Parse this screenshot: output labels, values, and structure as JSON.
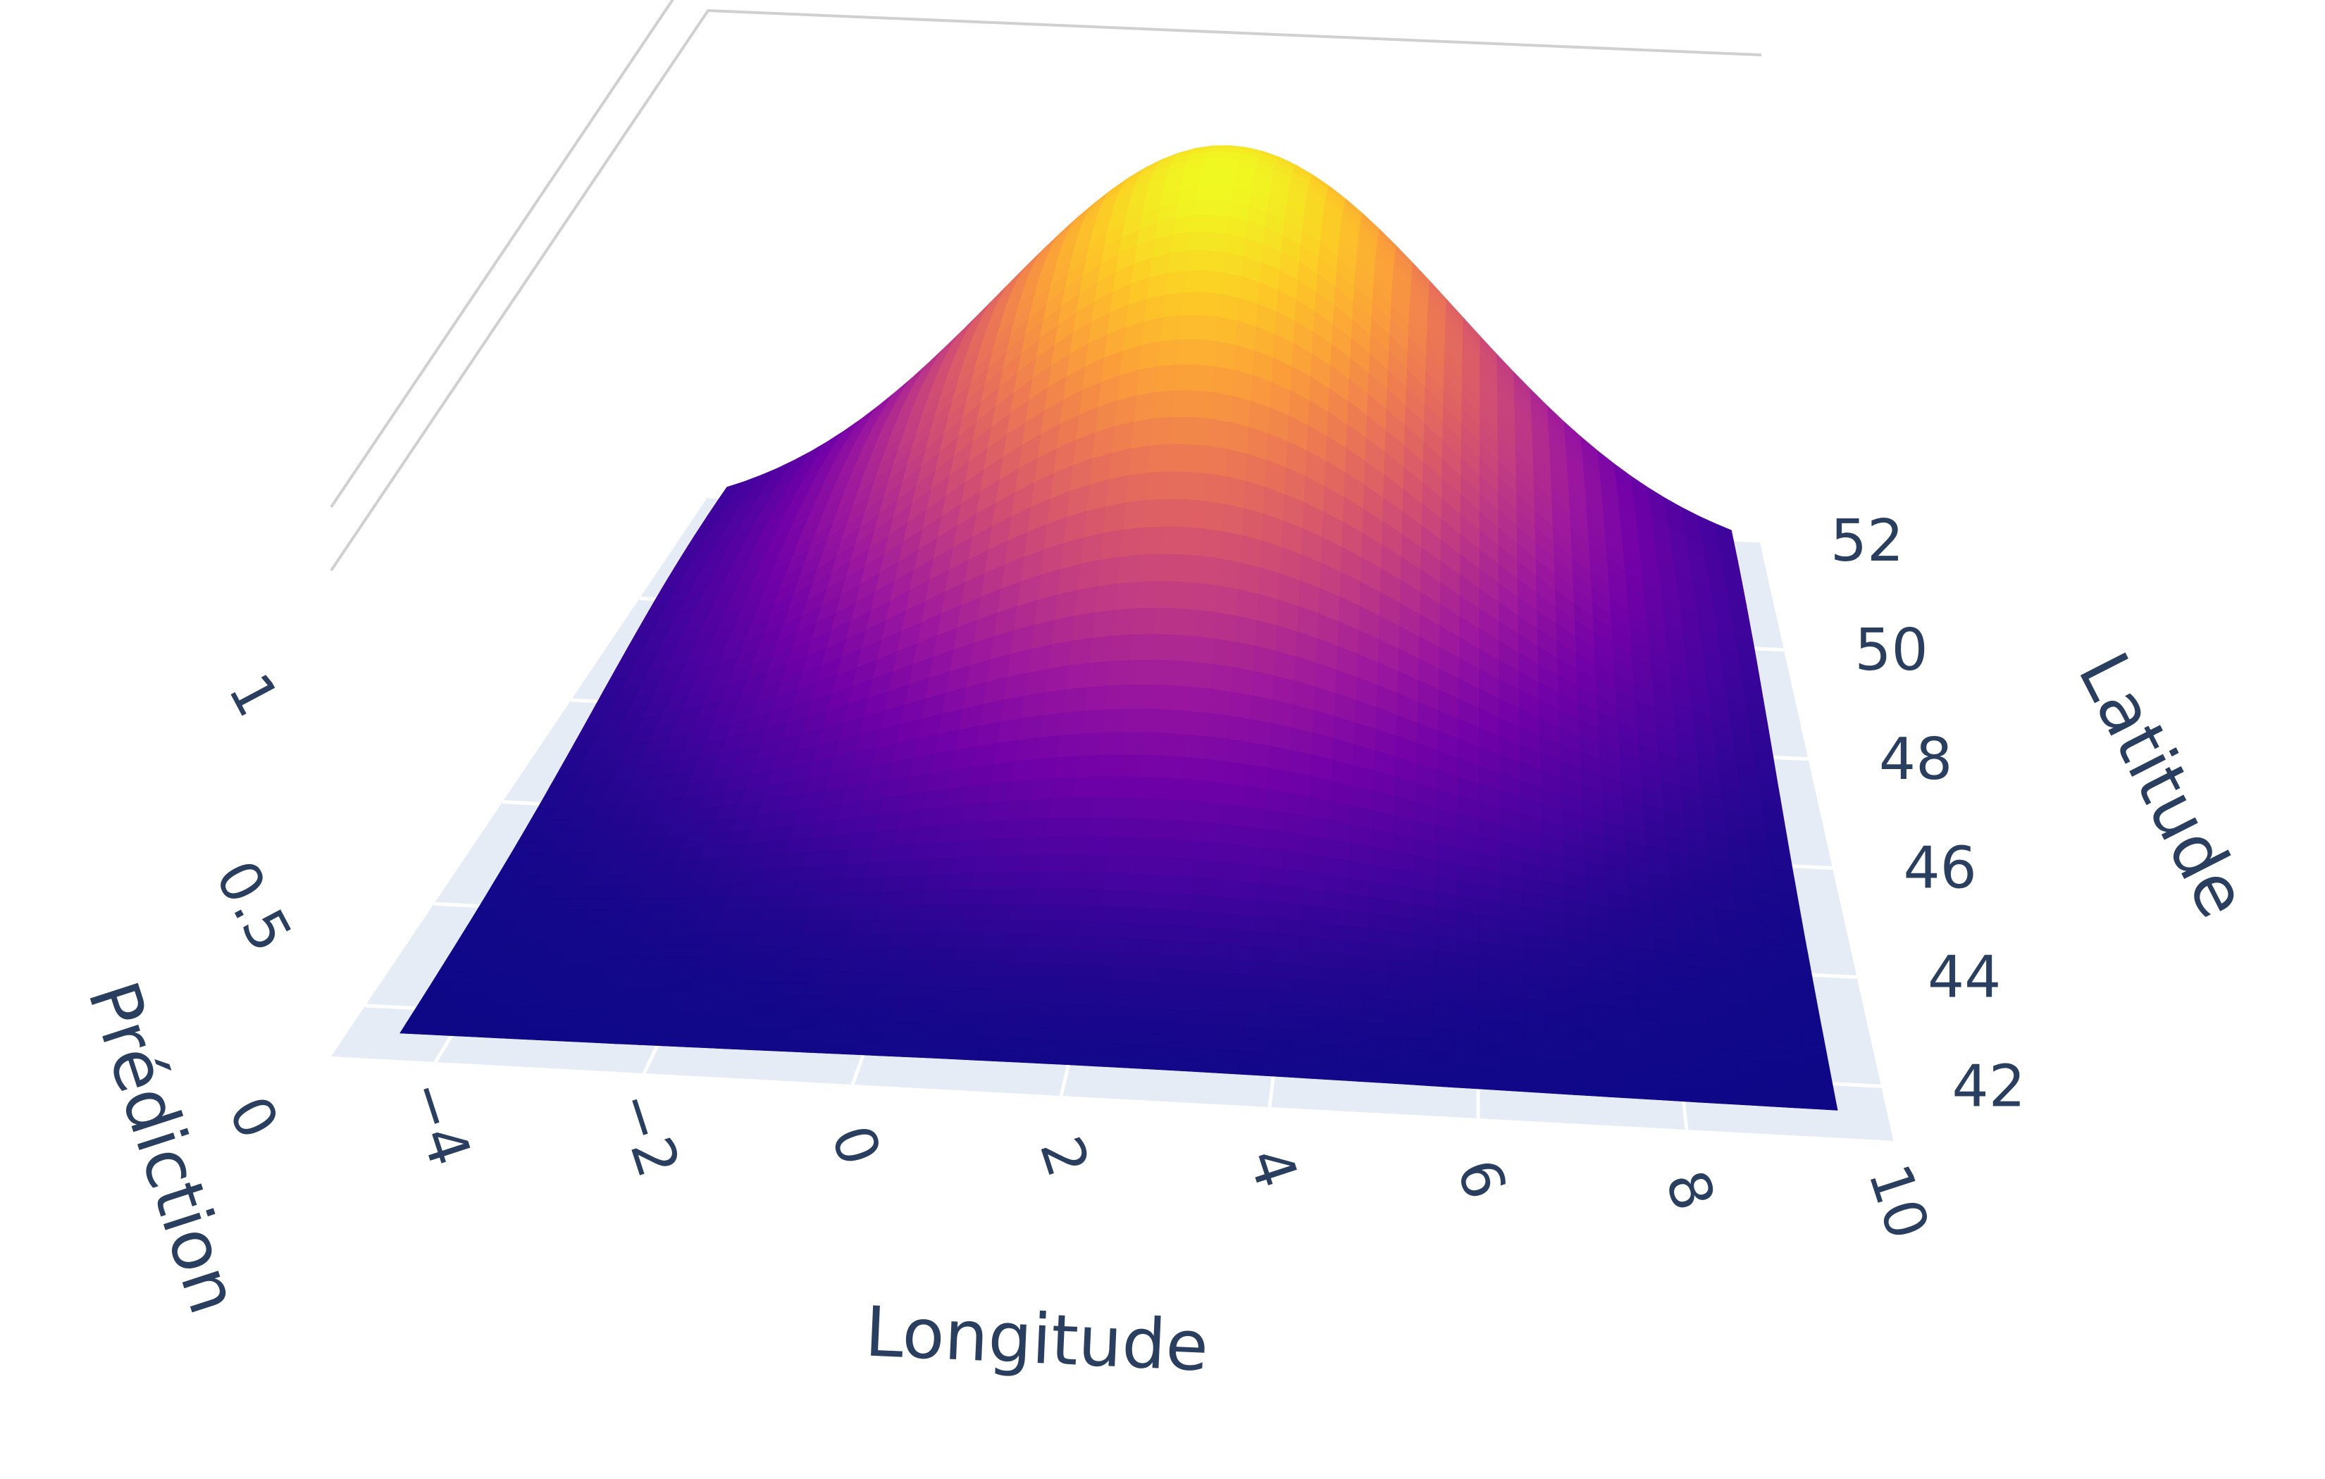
{
  "chart_data": {
    "type": "surface",
    "title": "",
    "xlabel": "Longitude",
    "ylabel": "Latitude",
    "zlabel": "Prédiction",
    "x_ticks": [
      "−4",
      "−2",
      "0",
      "2",
      "4",
      "6",
      "8",
      "10"
    ],
    "y_ticks": [
      "42",
      "44",
      "46",
      "48",
      "50",
      "52"
    ],
    "z_ticks": [
      "0",
      "0.5",
      "1"
    ],
    "x_range": [
      -5,
      10
    ],
    "y_range": [
      41,
      52
    ],
    "z_range": [
      0,
      1.3
    ],
    "surface": {
      "peak": {
        "longitude": 2.5,
        "latitude": 50.5,
        "value": 1.0
      },
      "lon_spread": 3.2,
      "lat_spread": 3.0,
      "floor": 0.0,
      "lon_range": [
        -4.5,
        9.5
      ],
      "lat_range": [
        41.5,
        51.5
      ]
    },
    "colorscale": "Plasma",
    "colors": {
      "low": "#0d0887",
      "high": "#f0f921",
      "grid_bg": "#e5ecf6",
      "grid_line": "#ffffff",
      "text": "#2a3f5f"
    },
    "grid": true
  }
}
